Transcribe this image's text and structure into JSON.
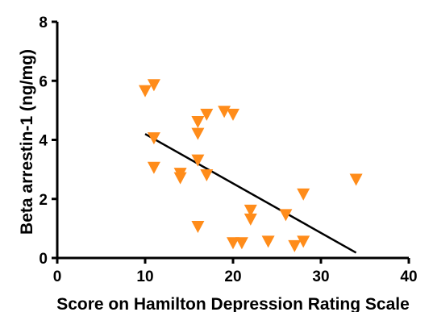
{
  "chart_data": {
    "type": "scatter",
    "title": "",
    "xlabel": "Score on Hamilton Depression Rating Scale",
    "ylabel": "Beta arrestin-1 (ng/mg)",
    "xlim": [
      0,
      40
    ],
    "ylim": [
      0,
      8
    ],
    "x_ticks": [
      0,
      10,
      20,
      30,
      40
    ],
    "y_ticks": [
      0,
      2,
      4,
      6,
      8
    ],
    "grid": false,
    "legend": "none",
    "marker": "triangle-down",
    "marker_color": "#ff8c1a",
    "points": [
      {
        "x": 10,
        "y": 5.65
      },
      {
        "x": 11,
        "y": 5.85
      },
      {
        "x": 11,
        "y": 4.05
      },
      {
        "x": 11,
        "y": 3.05
      },
      {
        "x": 14,
        "y": 2.85
      },
      {
        "x": 14,
        "y": 2.7
      },
      {
        "x": 16,
        "y": 4.6
      },
      {
        "x": 16,
        "y": 4.2
      },
      {
        "x": 16,
        "y": 3.3
      },
      {
        "x": 16,
        "y": 1.05
      },
      {
        "x": 17,
        "y": 4.85
      },
      {
        "x": 17,
        "y": 2.8
      },
      {
        "x": 19,
        "y": 4.95
      },
      {
        "x": 20,
        "y": 4.85
      },
      {
        "x": 20,
        "y": 0.5
      },
      {
        "x": 21,
        "y": 0.5
      },
      {
        "x": 22,
        "y": 1.6
      },
      {
        "x": 22,
        "y": 1.3
      },
      {
        "x": 24,
        "y": 0.55
      },
      {
        "x": 26,
        "y": 1.45
      },
      {
        "x": 27,
        "y": 0.4
      },
      {
        "x": 28,
        "y": 2.15
      },
      {
        "x": 28,
        "y": 0.55
      },
      {
        "x": 34,
        "y": 2.65
      }
    ],
    "trendline": {
      "x": [
        10,
        34
      ],
      "y": [
        4.2,
        0.18
      ],
      "color": "#000000"
    }
  }
}
